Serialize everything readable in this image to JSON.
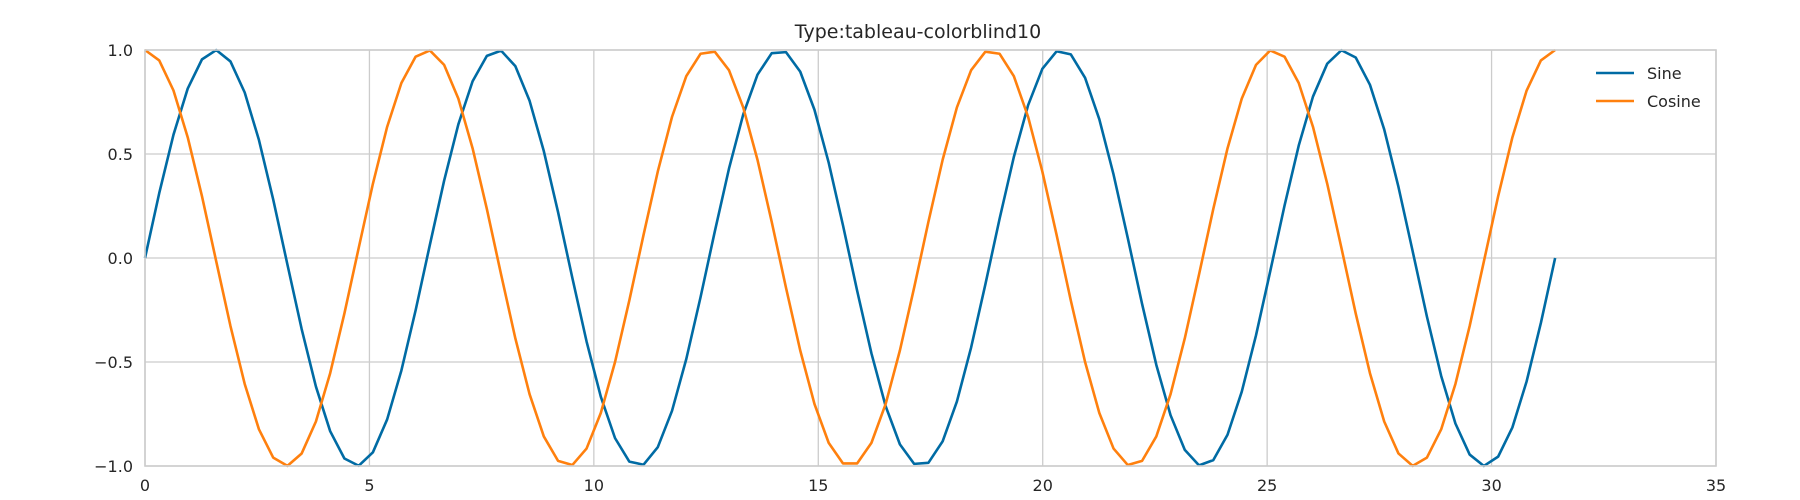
{
  "chart_data": {
    "type": "line",
    "title": "Type:tableau-colorblind10",
    "xlabel": "",
    "ylabel": "",
    "xlim": [
      0,
      35
    ],
    "ylim": [
      -1.0,
      1.0
    ],
    "x_ticks": [
      0,
      5,
      10,
      15,
      20,
      25,
      30,
      35
    ],
    "y_ticks": [
      -1.0,
      -0.5,
      0.0,
      0.5,
      1.0
    ],
    "x_tick_labels": [
      "0",
      "5",
      "10",
      "15",
      "20",
      "25",
      "30",
      "35"
    ],
    "y_tick_labels": [
      "−1.0",
      "−0.5",
      "0.0",
      "0.5",
      "1.0"
    ],
    "grid": true,
    "legend_position": "top-right",
    "x_range": [
      0,
      31.4159
    ],
    "point_count": 100,
    "series": [
      {
        "name": "Sine",
        "function": "sin",
        "color": "#006BA4"
      },
      {
        "name": "Cosine",
        "function": "cos",
        "color": "#FF800E"
      }
    ]
  }
}
